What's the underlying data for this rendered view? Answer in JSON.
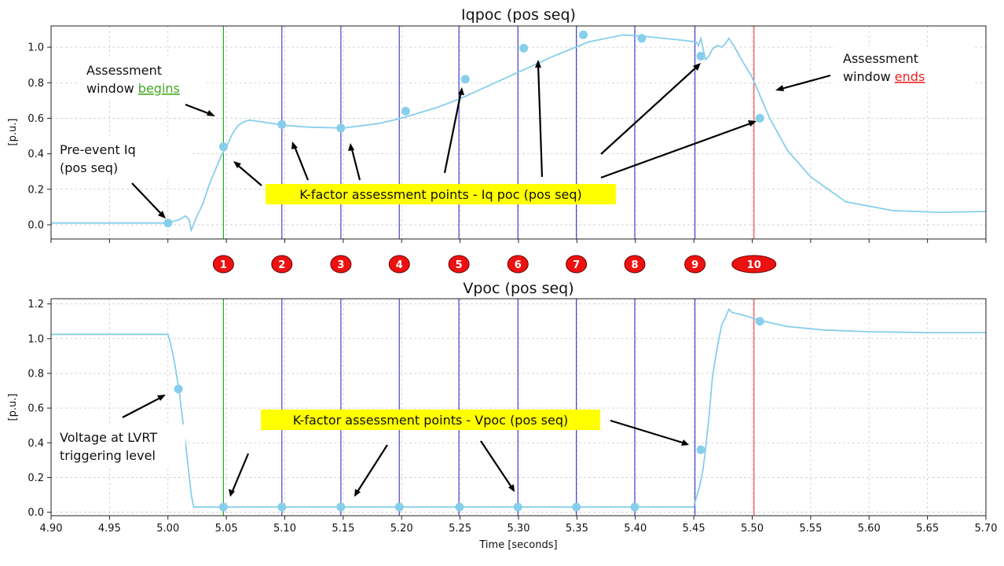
{
  "chart_data": [
    {
      "type": "line",
      "title": "Iqpoc (pos seq)",
      "ylabel": "[p.u.]",
      "xlim": [
        4.9,
        5.7
      ],
      "ylim": [
        -0.08,
        1.12
      ],
      "yticks": [
        "0.0",
        "0.2",
        "0.4",
        "0.6",
        "0.8",
        "1.0"
      ],
      "grid": true,
      "line_color": "#87ceeb",
      "series": [
        {
          "x": [
            4.9,
            4.99,
            5.0,
            5.01,
            5.015,
            5.018,
            5.02,
            5.025,
            5.03,
            5.035,
            5.04,
            5.045,
            5.05,
            5.055,
            5.06,
            5.065,
            5.07,
            5.08,
            5.09,
            5.1,
            5.12,
            5.15,
            5.18,
            5.2,
            5.23,
            5.25,
            5.28,
            5.3,
            5.33,
            5.36,
            5.39,
            5.41,
            5.44,
            5.452,
            5.454,
            5.456,
            5.458,
            5.46,
            5.463,
            5.466,
            5.47,
            5.474,
            5.477,
            5.48,
            5.485,
            5.49,
            5.5,
            5.515,
            5.53,
            5.55,
            5.58,
            5.62,
            5.66,
            5.7
          ],
          "y": [
            0.01,
            0.01,
            0.01,
            0.03,
            0.05,
            0.03,
            -0.03,
            0.05,
            0.12,
            0.22,
            0.3,
            0.38,
            0.44,
            0.51,
            0.56,
            0.58,
            0.59,
            0.58,
            0.57,
            0.56,
            0.55,
            0.545,
            0.57,
            0.6,
            0.66,
            0.71,
            0.8,
            0.86,
            0.95,
            1.03,
            1.07,
            1.06,
            1.04,
            1.03,
            1.01,
            1.05,
            0.99,
            0.93,
            0.95,
            0.99,
            1.01,
            1.0,
            1.02,
            1.05,
            1.0,
            0.94,
            0.83,
            0.6,
            0.42,
            0.27,
            0.13,
            0.08,
            0.07,
            0.075
          ]
        }
      ],
      "markers": {
        "x": [
          5.0,
          5.0475,
          5.0975,
          5.148,
          5.2035,
          5.2545,
          5.3045,
          5.3555,
          5.4055,
          5.456,
          5.5065
        ],
        "y": [
          0.01,
          0.44,
          0.565,
          0.545,
          0.64,
          0.82,
          0.995,
          1.07,
          1.05,
          0.95,
          0.6
        ]
      },
      "vlines": [
        {
          "x": 5.0475,
          "color": "#22aa22"
        },
        {
          "x": 5.0975,
          "color": "#4444cc"
        },
        {
          "x": 5.148,
          "color": "#4444cc"
        },
        {
          "x": 5.198,
          "color": "#4444cc"
        },
        {
          "x": 5.249,
          "color": "#4444cc"
        },
        {
          "x": 5.2995,
          "color": "#4444cc"
        },
        {
          "x": 5.3495,
          "color": "#4444cc"
        },
        {
          "x": 5.3995,
          "color": "#4444cc"
        },
        {
          "x": 5.451,
          "color": "#4444cc"
        },
        {
          "x": 5.5015,
          "color": "#ee4444"
        }
      ],
      "annotations": {
        "begin_text_1": "Assessment",
        "begin_text_2": "window",
        "begin_word": "begins",
        "begin_color": "#44aa22",
        "end_text_1": "Assessment",
        "end_text_2": "window",
        "end_word": "ends",
        "end_color": "#ee2222",
        "pre_event_1": "Pre-event Iq",
        "pre_event_2": "(pos seq)",
        "kfactor_label": "K-factor assessment points - Iq poc (pos seq)",
        "highlight_color": "#ffff00"
      }
    },
    {
      "type": "line",
      "title": "Vpoc (pos seq)",
      "xlabel": "Time [seconds]",
      "ylabel": "[p.u.]",
      "xlim": [
        4.9,
        5.7
      ],
      "ylim": [
        -0.02,
        1.23
      ],
      "xticks": [
        "4.90",
        "4.95",
        "5.00",
        "5.05",
        "5.10",
        "5.15",
        "5.20",
        "5.25",
        "5.30",
        "5.35",
        "5.40",
        "5.45",
        "5.50",
        "5.55",
        "5.60",
        "5.65",
        "5.70"
      ],
      "yticks": [
        "0.0",
        "0.2",
        "0.4",
        "0.6",
        "0.8",
        "1.0",
        "1.2"
      ],
      "grid": true,
      "line_color": "#87ceeb",
      "series": [
        {
          "x": [
            4.9,
            5.0,
            5.002,
            5.006,
            5.01,
            5.015,
            5.02,
            5.022,
            5.1,
            5.2,
            5.3,
            5.4,
            5.45,
            5.452,
            5.455,
            5.458,
            5.46,
            5.463,
            5.466,
            5.47,
            5.474,
            5.477,
            5.48,
            5.483,
            5.49,
            5.5,
            5.51,
            5.53,
            5.56,
            5.6,
            5.65,
            5.7
          ],
          "y": [
            1.025,
            1.025,
            0.98,
            0.85,
            0.68,
            0.4,
            0.1,
            0.03,
            0.03,
            0.03,
            0.03,
            0.03,
            0.03,
            0.08,
            0.15,
            0.25,
            0.36,
            0.55,
            0.78,
            0.95,
            1.08,
            1.12,
            1.17,
            1.15,
            1.14,
            1.12,
            1.1,
            1.07,
            1.05,
            1.04,
            1.035,
            1.035
          ]
        }
      ],
      "markers": {
        "x": [
          5.009,
          5.0475,
          5.0975,
          5.148,
          5.198,
          5.2495,
          5.2995,
          5.3495,
          5.3995,
          5.456,
          5.5065
        ],
        "y": [
          0.71,
          0.03,
          0.03,
          0.03,
          0.03,
          0.03,
          0.03,
          0.03,
          0.03,
          0.36,
          1.1
        ]
      },
      "vlines": [
        {
          "x": 5.0475,
          "color": "#22aa22"
        },
        {
          "x": 5.0975,
          "color": "#4444cc"
        },
        {
          "x": 5.148,
          "color": "#4444cc"
        },
        {
          "x": 5.198,
          "color": "#4444cc"
        },
        {
          "x": 5.249,
          "color": "#4444cc"
        },
        {
          "x": 5.2995,
          "color": "#4444cc"
        },
        {
          "x": 5.3495,
          "color": "#4444cc"
        },
        {
          "x": 5.3995,
          "color": "#4444cc"
        },
        {
          "x": 5.451,
          "color": "#4444cc"
        },
        {
          "x": 5.5015,
          "color": "#ee4444"
        }
      ],
      "annotations": {
        "lvrt_1": "Voltage at LVRT",
        "lvrt_2": "triggering level",
        "kfactor_label": "K-factor assessment points - Vpoc (pos seq)",
        "highlight_color": "#ffff00"
      }
    }
  ],
  "badges": {
    "labels": [
      "1",
      "2",
      "3",
      "4",
      "5",
      "6",
      "7",
      "8",
      "9",
      "10"
    ],
    "x": [
      5.0475,
      5.0975,
      5.148,
      5.198,
      5.249,
      5.2995,
      5.3495,
      5.3995,
      5.451,
      5.5015
    ],
    "color": "#ee1111"
  }
}
